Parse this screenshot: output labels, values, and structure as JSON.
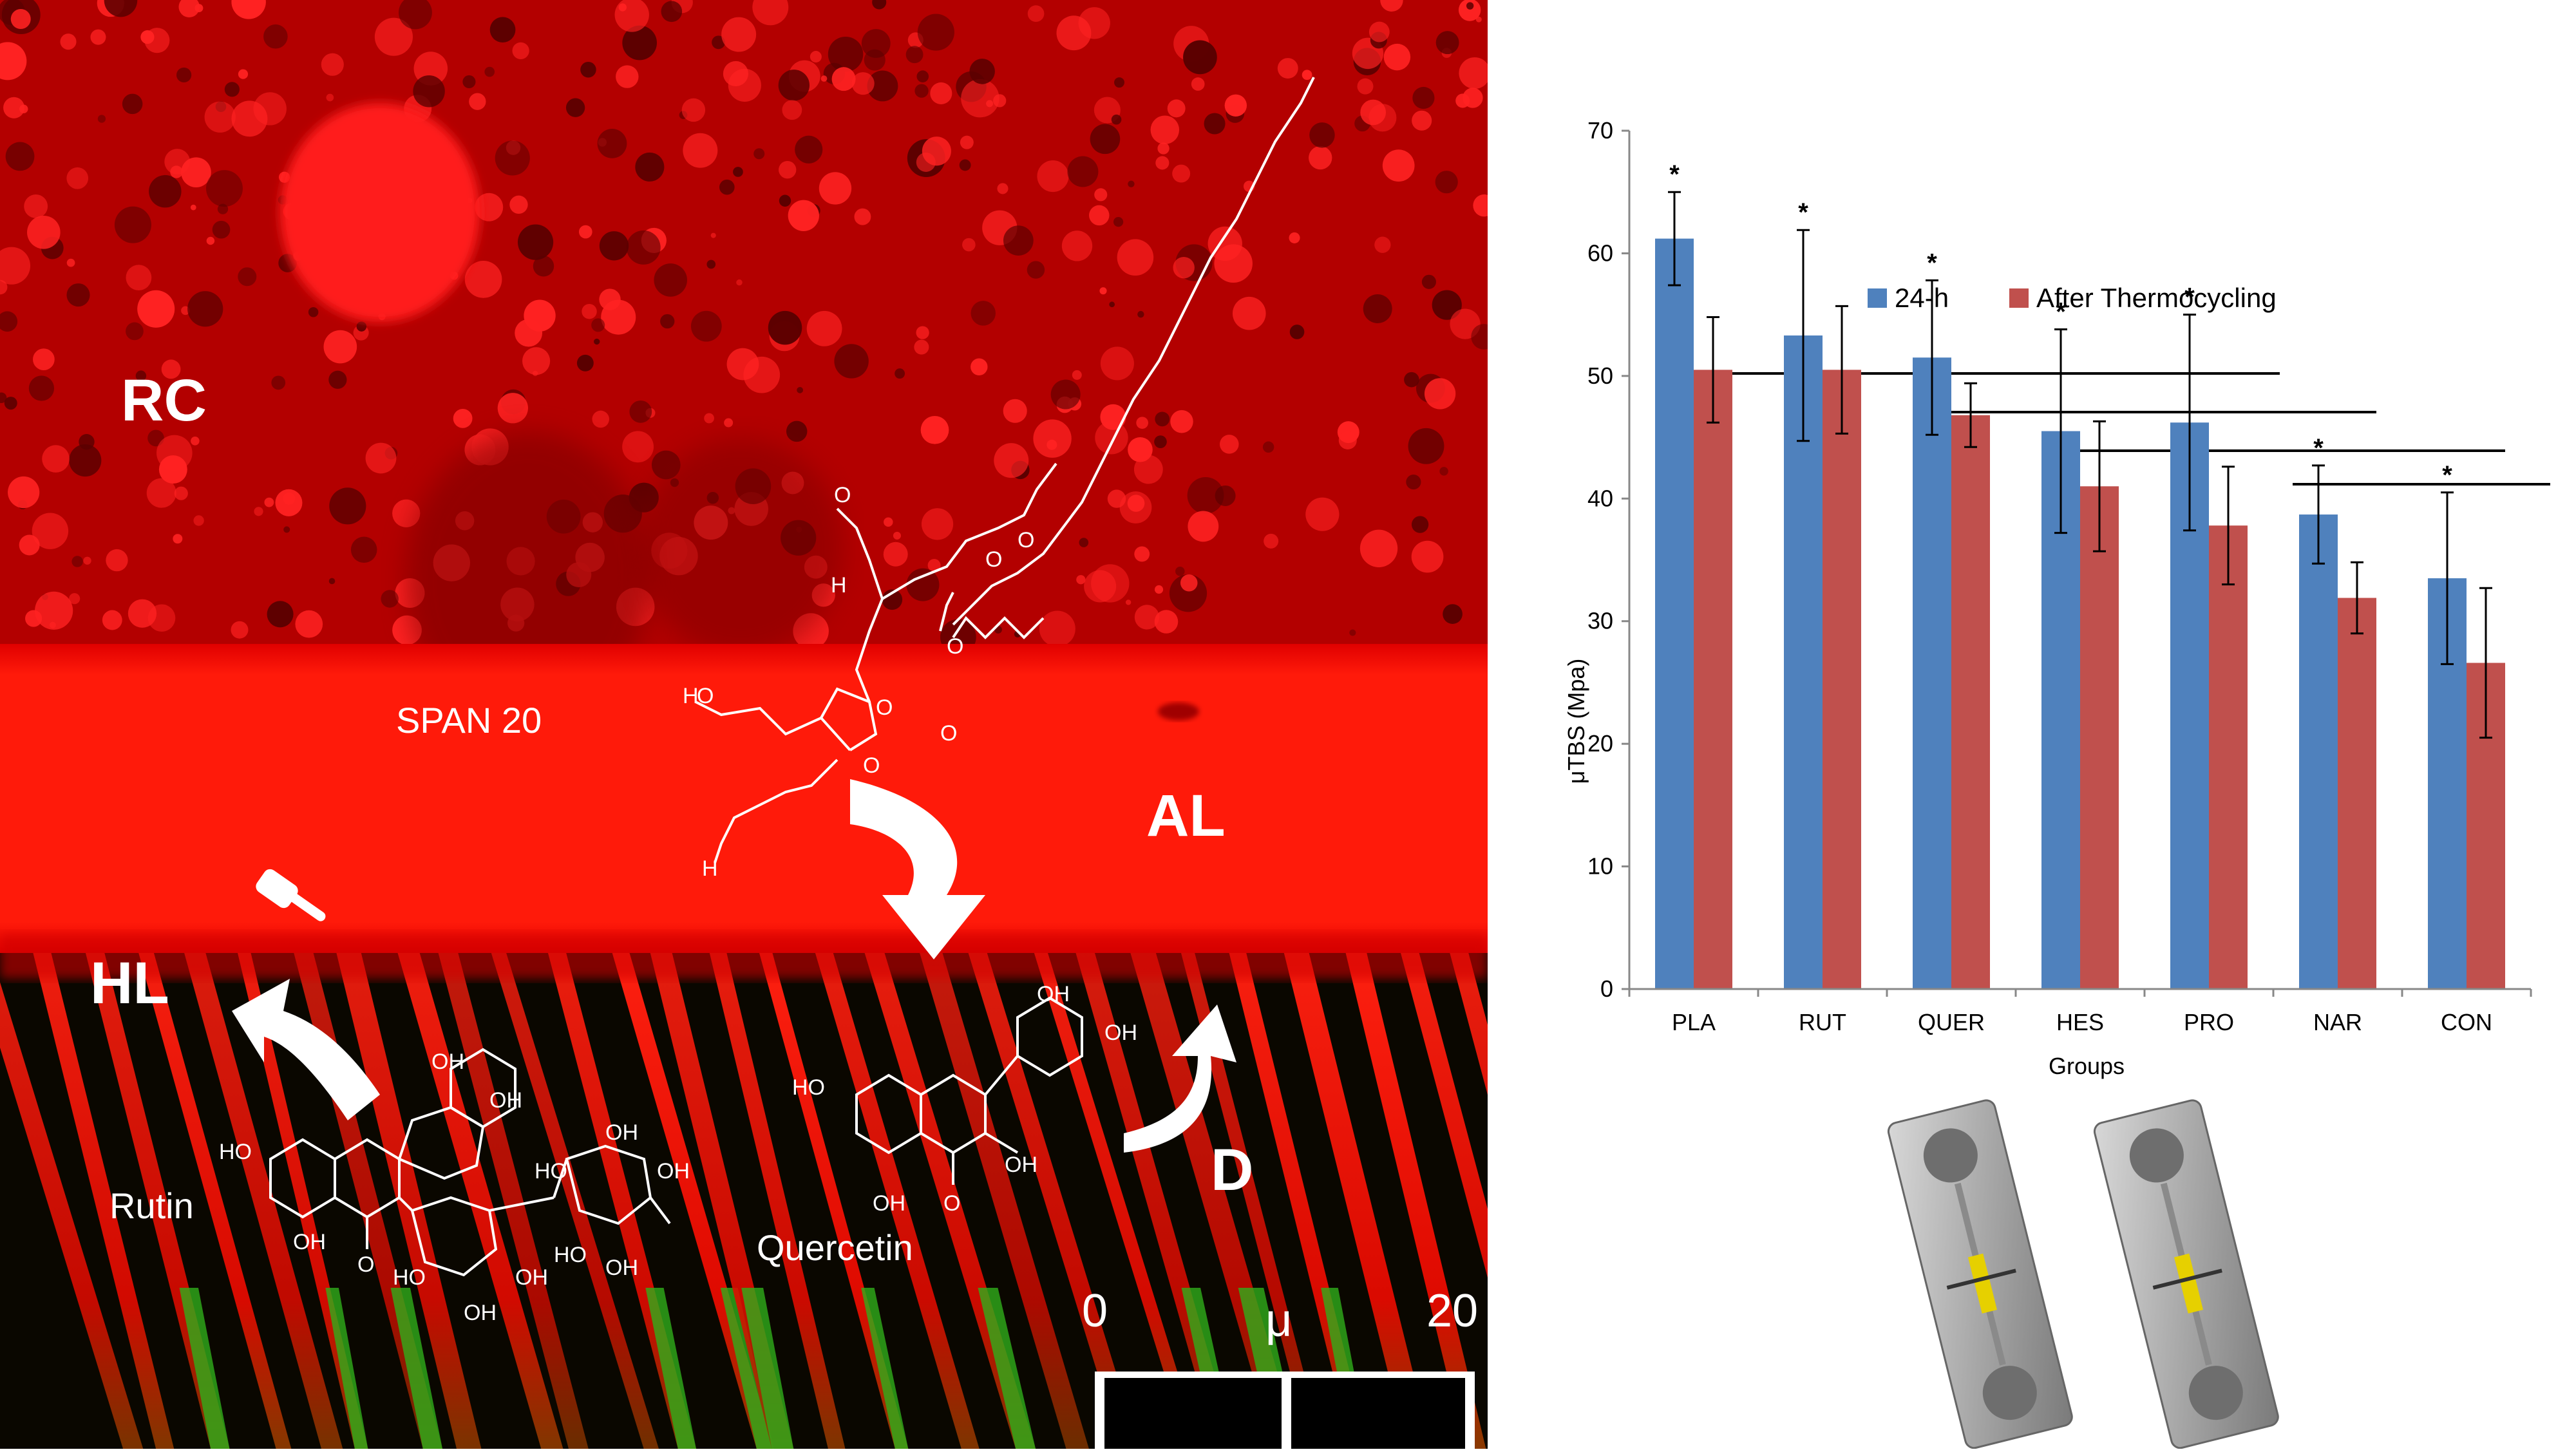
{
  "micrograph": {
    "labels": {
      "rc": "RC",
      "span": "SPAN 20",
      "al": "AL",
      "hl": "HL",
      "d": "D",
      "rutin": "Rutin",
      "quercetin": "Quercetin"
    },
    "scale_bar": {
      "start": "0",
      "unit": "μ",
      "end": "20"
    },
    "molecule_atoms": {
      "oh": "OH",
      "ho": "HO",
      "o": "O",
      "h": "H"
    }
  },
  "chart_data": {
    "type": "bar",
    "categories": [
      "PLA",
      "RUT",
      "QUER",
      "HES",
      "PRO",
      "NAR",
      "CON"
    ],
    "series": [
      {
        "name": "24-h",
        "color": "#4f81bd",
        "values": [
          61.2,
          53.3,
          51.5,
          45.5,
          46.2,
          38.7,
          33.5
        ],
        "errors": [
          3.8,
          8.6,
          6.3,
          8.3,
          8.8,
          4.0,
          7.0
        ]
      },
      {
        "name": "After Thermocycling",
        "color": "#c0504d",
        "values": [
          50.5,
          50.5,
          46.8,
          41.0,
          37.8,
          31.9,
          26.6
        ],
        "errors": [
          4.3,
          5.2,
          2.6,
          5.3,
          4.8,
          2.9,
          6.1
        ]
      }
    ],
    "significance": [
      "*",
      "*",
      "*",
      "*",
      "*",
      "*",
      "*"
    ],
    "ylim": [
      0,
      70
    ],
    "yticks": [
      "0",
      "10",
      "20",
      "30",
      "40",
      "50",
      "60",
      "70"
    ],
    "ylabel": "μTBS (Mpa)",
    "xlabel": "Groups",
    "legend_position": "top",
    "grid": false,
    "bracket_lines": [
      {
        "from": "PLA",
        "to": "PRO"
      },
      {
        "from": "QUER",
        "to": "NAR"
      },
      {
        "from": "HES",
        "to": "CON"
      },
      {
        "from": "NAR",
        "to": "CON"
      }
    ]
  }
}
